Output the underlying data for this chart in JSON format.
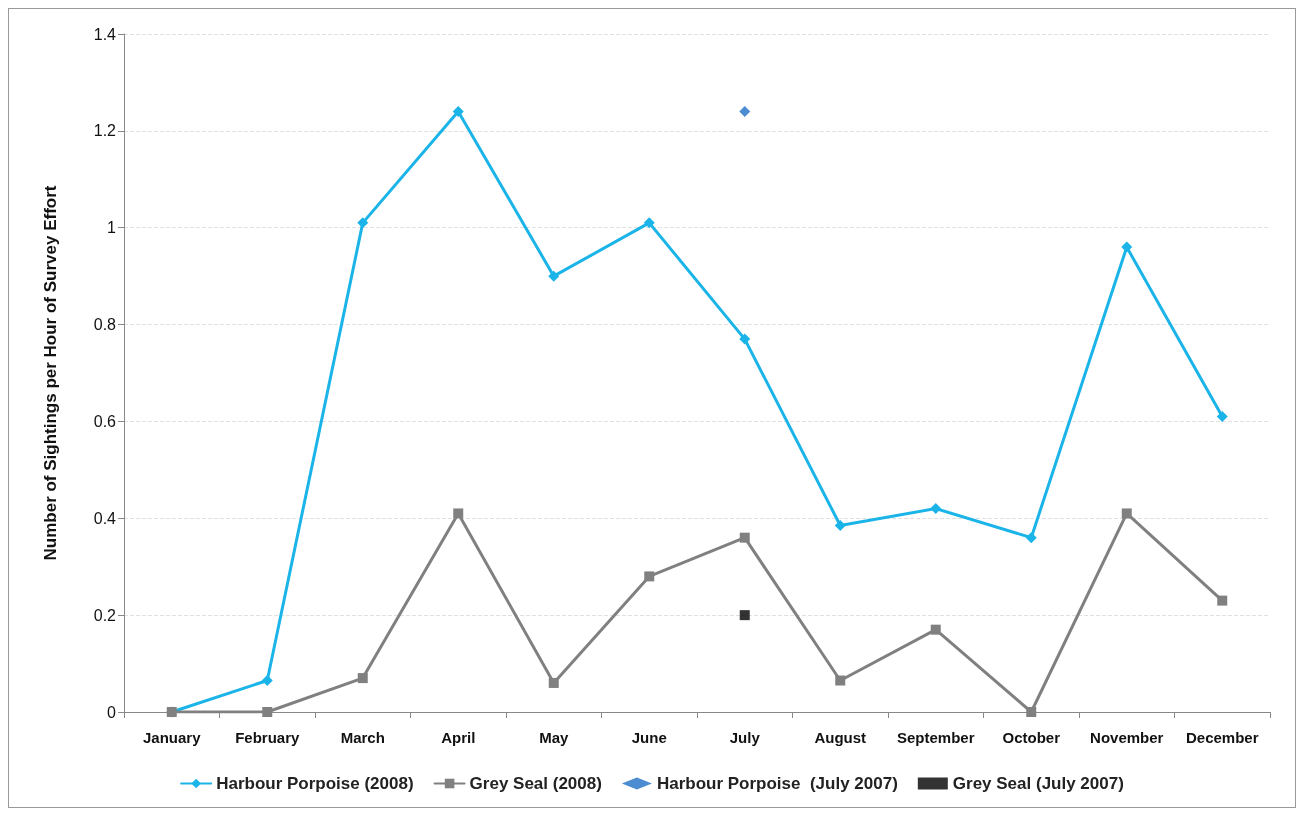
{
  "chart_data": {
    "type": "line",
    "ylabel": "Number of Sightings per Hour of Survey Effort",
    "categories": [
      "January",
      "February",
      "March",
      "April",
      "May",
      "June",
      "July",
      "August",
      "September",
      "October",
      "November",
      "December"
    ],
    "ylim": [
      0,
      1.4
    ],
    "yticks": [
      0,
      0.2,
      0.4,
      0.6,
      0.8,
      1,
      1.2,
      1.4
    ],
    "grid": "y",
    "legend": "bottom",
    "line_style": "solid",
    "series": [
      {
        "name": "Harbour Porpoise (2008)",
        "color": "#1ab4e8",
        "marker": "diamond",
        "values": [
          0,
          0.065,
          1.01,
          1.24,
          0.9,
          1.01,
          0.77,
          0.385,
          0.42,
          0.36,
          0.96,
          0.61
        ]
      },
      {
        "name": "Grey Seal (2008)",
        "color": "#808080",
        "marker": "square",
        "values": [
          0,
          0,
          0.07,
          0.41,
          0.06,
          0.28,
          0.36,
          0.065,
          0.17,
          0,
          0.41,
          0.23
        ]
      },
      {
        "name": "Harbour Porpoise  (July 2007)",
        "type": "scatter",
        "color": "#1f6fc5",
        "marker": "diamond",
        "values": [
          null,
          null,
          null,
          null,
          null,
          null,
          1.24,
          null,
          null,
          null,
          null,
          null
        ]
      },
      {
        "name": "Grey Seal (July 2007)",
        "type": "scatter",
        "color": "#000000",
        "marker": "square",
        "values": [
          null,
          null,
          null,
          null,
          null,
          null,
          0.2,
          null,
          null,
          null,
          null,
          null
        ]
      }
    ]
  }
}
